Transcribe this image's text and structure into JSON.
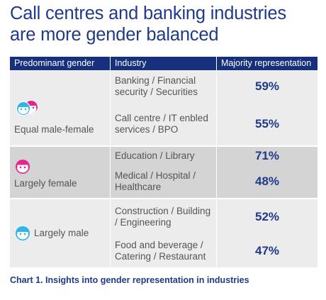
{
  "title_line1": "Call centres and banking industries",
  "title_line2": "are more gender balanced",
  "headers": {
    "gender": "Predominant gender",
    "industry": "Industry",
    "representation": "Majority representation"
  },
  "colors": {
    "header_bg": "#16307d",
    "title": "#1f3a8a",
    "male_icon": "#2eb6e8",
    "female_icon": "#e6238e"
  },
  "chart_data": {
    "type": "table",
    "columns": [
      "Predominant gender",
      "Industry",
      "Majority representation"
    ],
    "groups": [
      {
        "gender": "Equal male-female",
        "icon": "male-female-icon",
        "rows": [
          {
            "industry": "Banking / Financial security / Securities",
            "value": "59%"
          },
          {
            "industry": "Call centre / IT enbled services / BPO",
            "value": "55%"
          }
        ]
      },
      {
        "gender": "Largely female",
        "icon": "female-icon",
        "rows": [
          {
            "industry": "Education / Library",
            "value": "71%"
          },
          {
            "industry": "Medical / Hospital / Healthcare",
            "value": "48%"
          }
        ]
      },
      {
        "gender": "Largely male",
        "icon": "male-icon",
        "rows": [
          {
            "industry": "Construction / Building / Engineering",
            "value": "52%"
          },
          {
            "industry": "Food and beverage / Catering / Restaurant",
            "value": "47%"
          }
        ]
      }
    ]
  },
  "caption": "Chart 1. Insights into gender representation in industries"
}
